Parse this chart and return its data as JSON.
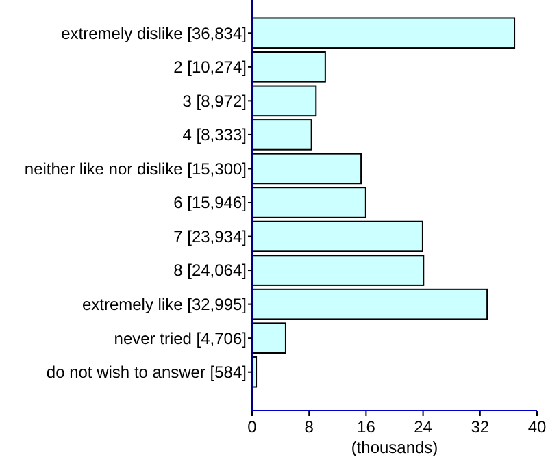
{
  "chart_data": {
    "type": "bar",
    "orientation": "horizontal",
    "xlabel": "(thousands)",
    "categories": [
      "extremely dislike [36,834]",
      "2 [10,274]",
      "3 [8,972]",
      "4 [8,333]",
      "neither like nor dislike [15,300]",
      "6 [15,946]",
      "7 [23,934]",
      "8 [24,064]",
      "extremely like [32,995]",
      "never tried [4,706]",
      "do not wish to answer [584]"
    ],
    "values": [
      36.834,
      10.274,
      8.972,
      8.333,
      15.3,
      15.946,
      23.934,
      24.064,
      32.995,
      4.706,
      0.584
    ],
    "color": "#ccffff",
    "xlim": [
      0,
      40
    ],
    "xticks": [
      0,
      8,
      16,
      24,
      32,
      40
    ]
  }
}
